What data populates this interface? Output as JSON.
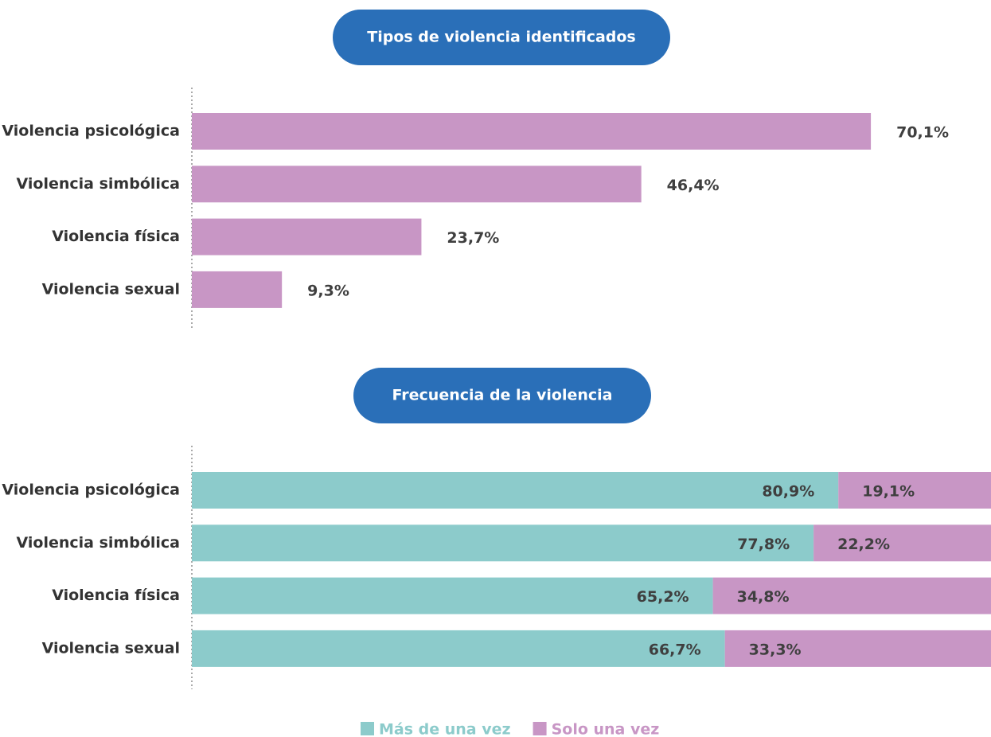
{
  "chart_data": [
    {
      "type": "bar",
      "title": "Tipos de violencia identificados",
      "categories": [
        "Violencia psicológica",
        "Violencia simbólica",
        "Violencia física",
        "Violencia sexual"
      ],
      "values": [
        70.1,
        46.4,
        23.7,
        9.3
      ],
      "value_labels": [
        "70,1%",
        "46,4%",
        "23,7%",
        "9,3%"
      ],
      "color": "#c896c5",
      "xlim": [
        0,
        82.5
      ]
    },
    {
      "type": "stacked_bar",
      "title": "Frecuencia de la violencia",
      "categories": [
        "Violencia psicológica",
        "Violencia simbólica",
        "Violencia física",
        "Violencia sexual"
      ],
      "series": [
        {
          "name": "Más de una vez",
          "color": "#8ccbcb",
          "values": [
            80.9,
            77.8,
            65.2,
            66.7
          ],
          "value_labels": [
            "80,9%",
            "77,8%",
            "65,2%",
            "66,7%"
          ]
        },
        {
          "name": "Solo una vez",
          "color": "#c896c5",
          "values": [
            19.1,
            22.2,
            34.8,
            33.3
          ],
          "value_labels": [
            "19,1%",
            "22,2%",
            "34,8%",
            "33,3%"
          ]
        }
      ],
      "xlim": [
        0,
        100
      ],
      "legend": "bottom"
    }
  ]
}
